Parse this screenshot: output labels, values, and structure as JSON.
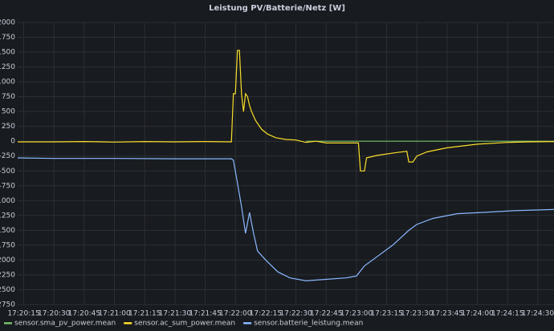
{
  "chart_data": {
    "type": "line",
    "title": "Leistung PV/Batterie/Netz [W]",
    "xlim": [
      "17:20:12",
      "17:24:38"
    ],
    "xticks": [
      "17:20:15",
      "17:20:30",
      "17:20:45",
      "17:21:00",
      "17:21:15",
      "17:21:30",
      "17:21:45",
      "17:22:00",
      "17:22:15",
      "17:22:30",
      "17:22:45",
      "17:23:00",
      "17:23:15",
      "17:23:30",
      "17:23:45",
      "17:24:00",
      "17:24:15",
      "17:24:30"
    ],
    "ylim": [
      -2750,
      2000
    ],
    "yticks": [
      -2750,
      -2500,
      -2250,
      -2000,
      -1750,
      -1500,
      -1250,
      -1000,
      -750,
      -500,
      -250,
      0,
      250,
      500,
      750,
      1000,
      1250,
      1500,
      1750,
      2000
    ],
    "grid": true,
    "legend": "bottom-left",
    "series": [
      {
        "name": "sensor.sma_pv_power.mean",
        "color": "#73bf69",
        "x": [
          "17:22:35",
          "17:24:38"
        ],
        "values": [
          0,
          0
        ]
      },
      {
        "name": "sensor.ac_sum_power.mean",
        "color": "#fade2a",
        "x": [
          "17:20:12",
          "17:20:30",
          "17:20:45",
          "17:21:00",
          "17:21:15",
          "17:21:30",
          "17:21:45",
          "17:21:58",
          "17:21:59",
          "17:22:00",
          "17:22:01",
          "17:22:02",
          "17:22:03",
          "17:22:04",
          "17:22:05",
          "17:22:06",
          "17:22:07",
          "17:22:08",
          "17:22:10",
          "17:22:13",
          "17:22:16",
          "17:22:20",
          "17:22:25",
          "17:22:30",
          "17:22:35",
          "17:22:40",
          "17:22:45",
          "17:22:55",
          "17:23:01",
          "17:23:02",
          "17:23:04",
          "17:23:05",
          "17:23:10",
          "17:23:20",
          "17:23:25",
          "17:23:26",
          "17:23:28",
          "17:23:30",
          "17:23:35",
          "17:23:45",
          "17:24:00",
          "17:24:15",
          "17:24:25",
          "17:24:38"
        ],
        "values": [
          -10,
          -10,
          -5,
          -15,
          -5,
          -10,
          -5,
          -10,
          800,
          800,
          1530,
          1530,
          800,
          500,
          800,
          750,
          600,
          500,
          350,
          200,
          120,
          60,
          30,
          20,
          -20,
          0,
          -30,
          -30,
          -30,
          -500,
          -500,
          -280,
          -240,
          -190,
          -170,
          -350,
          -350,
          -250,
          -180,
          -110,
          -50,
          -20,
          -10,
          -5
        ]
      },
      {
        "name": "sensor.batterie_leistung.mean",
        "color": "#8ab8ff",
        "x": [
          "17:20:12",
          "17:20:30",
          "17:21:00",
          "17:21:30",
          "17:21:58",
          "17:21:59",
          "17:22:01",
          "17:22:03",
          "17:22:05",
          "17:22:07",
          "17:22:09",
          "17:22:11",
          "17:22:15",
          "17:22:21",
          "17:22:27",
          "17:22:35",
          "17:22:43",
          "17:22:55",
          "17:23:00",
          "17:23:04",
          "17:23:10",
          "17:23:18",
          "17:23:26",
          "17:23:30",
          "17:23:38",
          "17:23:50",
          "17:24:02",
          "17:24:18",
          "17:24:38"
        ],
        "values": [
          -280,
          -290,
          -290,
          -295,
          -295,
          -320,
          -700,
          -1100,
          -1550,
          -1200,
          -1550,
          -1850,
          -2000,
          -2200,
          -2300,
          -2350,
          -2330,
          -2300,
          -2270,
          -2100,
          -1950,
          -1750,
          -1500,
          -1400,
          -1300,
          -1220,
          -1200,
          -1170,
          -1150
        ]
      }
    ]
  }
}
